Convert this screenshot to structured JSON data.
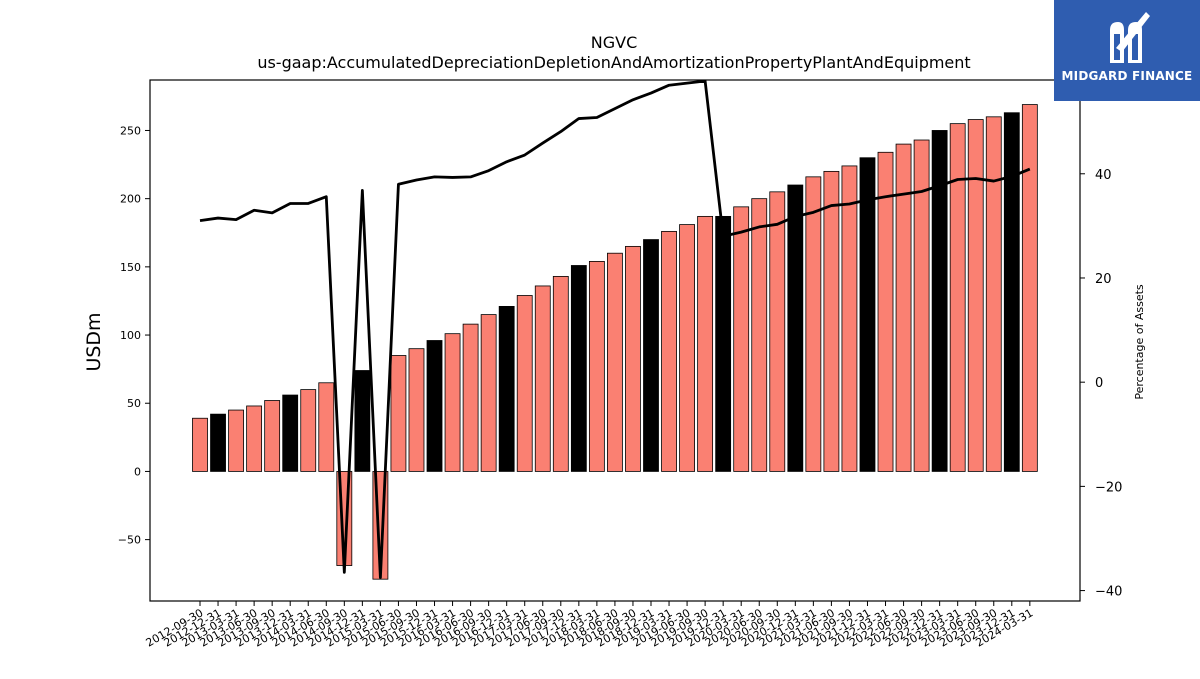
{
  "brand": {
    "name": "MIDGARD FINANCE",
    "color": "#2f5db0"
  },
  "chart_data": {
    "type": "bar",
    "title": "NGVC",
    "subtitle": "us-gaap:AccumulatedDepreciationDepletionAndAmortizationPropertyPlantAndEquipment",
    "ylabel": "USDm",
    "y2label": "Percentage of Assets",
    "ylim": [
      -95,
      287
    ],
    "y2lim": [
      -42,
      58
    ],
    "yticks": [
      -50,
      0,
      50,
      100,
      150,
      200,
      250
    ],
    "y2ticks": [
      -40,
      -20,
      0,
      20,
      40
    ],
    "grid": false,
    "colors": {
      "bar_default": "#fa8072",
      "bar_highlight": "#000000",
      "line": "#000000"
    },
    "categories": [
      "2012-09-30",
      "2012-12-31",
      "2013-03-31",
      "2013-06-30",
      "2013-09-30",
      "2013-12-31",
      "2014-03-31",
      "2014-06-30",
      "2014-09-30",
      "2014-12-31",
      "2015-03-31",
      "2015-06-30",
      "2015-09-30",
      "2015-12-31",
      "2016-03-31",
      "2016-06-30",
      "2016-09-30",
      "2016-12-31",
      "2017-03-31",
      "2017-06-30",
      "2017-09-30",
      "2017-12-31",
      "2018-03-31",
      "2018-06-30",
      "2018-09-30",
      "2018-12-31",
      "2019-03-31",
      "2019-06-30",
      "2019-09-30",
      "2019-12-31",
      "2020-03-31",
      "2020-06-30",
      "2020-09-30",
      "2020-12-31",
      "2021-03-31",
      "2021-06-30",
      "2021-09-30",
      "2021-12-31",
      "2022-03-31",
      "2022-06-30",
      "2022-09-30",
      "2022-12-31",
      "2023-03-31",
      "2023-06-30",
      "2023-09-30",
      "2023-12-31",
      "2024-03-31"
    ],
    "series": [
      {
        "axis": "left",
        "kind": "bar",
        "values": [
          39,
          42,
          45,
          48,
          52,
          56,
          60,
          65,
          -69,
          74,
          -79,
          85,
          90,
          96,
          101,
          108,
          115,
          121,
          129,
          136,
          143,
          151,
          154,
          160,
          165,
          170,
          176,
          181,
          187,
          187,
          194,
          200,
          205,
          210,
          216,
          220,
          224,
          230,
          234,
          240,
          243,
          250,
          255,
          258,
          260,
          263,
          269
        ],
        "highlighted": [
          false,
          true,
          false,
          false,
          false,
          true,
          false,
          false,
          false,
          true,
          false,
          false,
          false,
          true,
          false,
          false,
          false,
          true,
          false,
          false,
          false,
          true,
          false,
          false,
          false,
          true,
          false,
          false,
          false,
          true,
          false,
          false,
          false,
          true,
          false,
          false,
          false,
          true,
          false,
          false,
          false,
          true,
          false,
          false,
          false,
          true,
          false
        ]
      },
      {
        "axis": "right",
        "kind": "line",
        "values": [
          31,
          31.5,
          31.2,
          33,
          32.5,
          34.3,
          34.3,
          35.6,
          -36.5,
          36.8,
          -37.5,
          38,
          38.8,
          39.4,
          39.3,
          39.4,
          40.6,
          42.3,
          43.6,
          45.9,
          48.1,
          50.6,
          50.8,
          52.5,
          54.2,
          55.5,
          57,
          57.4,
          57.8,
          28,
          28.8,
          29.8,
          30.3,
          31.8,
          32.6,
          33.9,
          34.2,
          35,
          35.6,
          36.1,
          36.6,
          37.7,
          38.9,
          39.1,
          38.6,
          39.5,
          40.9
        ]
      }
    ]
  }
}
